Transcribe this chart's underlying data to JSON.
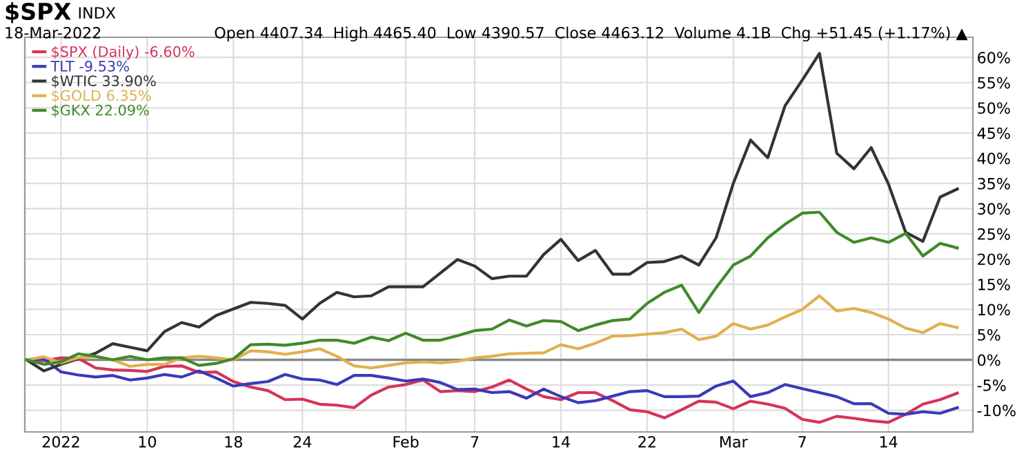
{
  "chart_data": {
    "type": "line",
    "title": "$SPX",
    "subtitle": "INDX",
    "annotations": [
      "18-Mar-2022",
      "Open 4407.34  High 4465.40  Low 4390.57  Close 4463.12  Volume 4.1B  Chg +51.45 (+1.17%) ▲"
    ],
    "categories": [
      null,
      null,
      "2022",
      null,
      null,
      null,
      null,
      "10",
      null,
      null,
      null,
      null,
      "18",
      null,
      null,
      null,
      "24",
      null,
      null,
      null,
      null,
      null,
      "Feb",
      null,
      null,
      null,
      "7",
      null,
      null,
      null,
      null,
      "14",
      null,
      null,
      null,
      null,
      "22",
      null,
      null,
      null,
      null,
      "Mar",
      null,
      null,
      null,
      "7",
      null,
      null,
      null,
      null,
      "14",
      null,
      null,
      null,
      null
    ],
    "series": [
      {
        "name": "$SPX (Daily) -6.60%",
        "color": "#d6335a",
        "values": [
          0,
          -0.2,
          0.4,
          0.3,
          -1.6,
          -2.0,
          -2.1,
          -2.3,
          -1.3,
          -1.2,
          -2.5,
          -2.4,
          -4.3,
          -5.4,
          -6.1,
          -7.9,
          -7.8,
          -8.8,
          -9.0,
          -9.5,
          -7.0,
          -5.4,
          -4.9,
          -4.0,
          -6.3,
          -6.1,
          -6.3,
          -5.4,
          -4.0,
          -5.8,
          -7.3,
          -7.9,
          -6.5,
          -6.5,
          -8.1,
          -9.9,
          -10.3,
          -11.5,
          -9.9,
          -8.2,
          -8.4,
          -9.7,
          -8.2,
          -8.8,
          -9.6,
          -11.8,
          -12.4,
          -11.2,
          -11.6,
          -12.1,
          -12.4,
          -10.8,
          -8.8,
          -7.9,
          -6.6
        ]
      },
      {
        "name": "TLT -9.53%",
        "color": "#3a3ab8",
        "values": [
          0,
          0.2,
          -2.4,
          -3.0,
          -3.4,
          -3.1,
          -4.0,
          -3.6,
          -2.9,
          -3.4,
          -2.2,
          -3.6,
          -5.2,
          -4.7,
          -4.3,
          -2.9,
          -3.8,
          -4.0,
          -4.9,
          -3.1,
          -3.1,
          -3.6,
          -4.2,
          -3.8,
          -4.5,
          -5.9,
          -5.8,
          -6.5,
          -6.3,
          -7.6,
          -5.8,
          -7.3,
          -8.5,
          -8.1,
          -7.2,
          -6.3,
          -6.1,
          -7.3,
          -7.3,
          -7.2,
          -5.2,
          -4.2,
          -7.3,
          -6.5,
          -4.9,
          -5.7,
          -6.5,
          -7.3,
          -8.7,
          -8.7,
          -10.6,
          -10.8,
          -10.3,
          -10.6,
          -9.5
        ]
      },
      {
        "name": "$WTIC 33.90%",
        "color": "#333333",
        "values": [
          0,
          -2.2,
          -0.9,
          0.2,
          1.3,
          3.2,
          2.5,
          1.8,
          5.6,
          7.4,
          6.5,
          8.8,
          10.1,
          11.4,
          11.2,
          10.8,
          8.1,
          11.2,
          13.4,
          12.5,
          12.7,
          14.5,
          14.5,
          14.5,
          17.2,
          19.9,
          18.6,
          16.1,
          16.6,
          16.6,
          20.9,
          23.9,
          19.7,
          21.7,
          17.0,
          17.0,
          19.3,
          19.5,
          20.6,
          18.8,
          24.2,
          35.0,
          43.6,
          40.1,
          50.4,
          55.5,
          60.8,
          41.0,
          37.9,
          42.1,
          34.9,
          25.3,
          23.5,
          32.3,
          33.9
        ]
      },
      {
        "name": "$GOLD 6.35%",
        "color": "#e0b050",
        "values": [
          0,
          0.6,
          -0.6,
          0.4,
          0.7,
          0,
          -1.3,
          -0.9,
          -0.9,
          0.4,
          0.7,
          0.4,
          0,
          1.8,
          1.6,
          1.1,
          1.6,
          2.2,
          0.7,
          -1.2,
          -1.6,
          -1.1,
          -0.6,
          -0.4,
          -0.6,
          -0.3,
          0.4,
          0.7,
          1.2,
          1.3,
          1.4,
          3.0,
          2.2,
          3.3,
          4.7,
          4.8,
          5.1,
          5.4,
          6.1,
          4.0,
          4.7,
          7.2,
          6.1,
          6.9,
          8.5,
          10.0,
          12.7,
          9.7,
          10.2,
          9.4,
          8.1,
          6.3,
          5.4,
          7.2,
          6.4
        ]
      },
      {
        "name": "$GKX 22.09%",
        "color": "#3f8a2c",
        "values": [
          0,
          -0.9,
          -0.4,
          1.2,
          0.7,
          0,
          0.7,
          0,
          0.4,
          0.4,
          -1.1,
          -0.7,
          0.2,
          3.0,
          3.1,
          2.9,
          3.3,
          3.9,
          3.9,
          3.3,
          4.5,
          3.8,
          5.3,
          3.9,
          3.9,
          4.8,
          5.8,
          6.1,
          7.9,
          6.7,
          7.8,
          7.6,
          5.8,
          6.9,
          7.8,
          8.1,
          11.2,
          13.4,
          14.8,
          9.4,
          14.3,
          18.8,
          20.6,
          24.2,
          26.9,
          29.1,
          29.3,
          25.3,
          23.3,
          24.2,
          23.3,
          25.1,
          20.6,
          23.1,
          22.2
        ]
      }
    ],
    "ylim": [
      -14.3,
      64
    ],
    "yticks": [
      {
        "value": -10,
        "label": "-10%"
      },
      {
        "value": -5,
        "label": "-5%"
      },
      {
        "value": 0,
        "label": "0%"
      },
      {
        "value": 5,
        "label": "5%"
      },
      {
        "value": 10,
        "label": "10%"
      },
      {
        "value": 15,
        "label": "15%"
      },
      {
        "value": 20,
        "label": "20%"
      },
      {
        "value": 25,
        "label": "25%"
      },
      {
        "value": 30,
        "label": "30%"
      },
      {
        "value": 35,
        "label": "35%"
      },
      {
        "value": 40,
        "label": "40%"
      },
      {
        "value": 45,
        "label": "45%"
      },
      {
        "value": 50,
        "label": "50%"
      },
      {
        "value": 55,
        "label": "55%"
      },
      {
        "value": 60,
        "label": "60%"
      }
    ],
    "ref_lines": [
      {
        "axis": "y",
        "value": 0,
        "color": "#888888"
      }
    ],
    "grid": true,
    "legend": "top left",
    "marker": "none",
    "line_style": "solid"
  }
}
